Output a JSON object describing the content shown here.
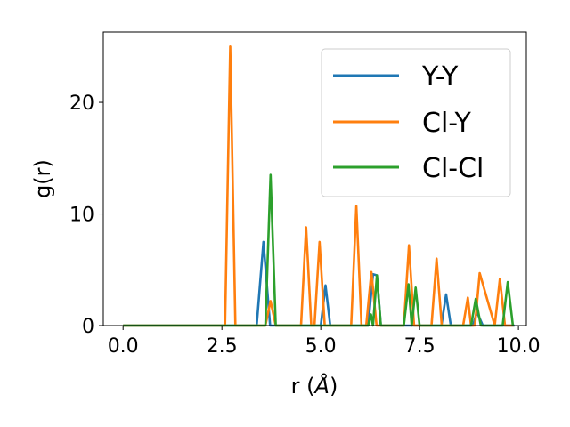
{
  "chart_data": {
    "type": "line",
    "xlabel_prefix": "r (",
    "xlabel_unit": "Å",
    "xlabel_suffix": ")",
    "ylabel": "g(r)",
    "xlim": [
      -0.5,
      10.2
    ],
    "ylim": [
      0,
      26.3
    ],
    "xticks": [
      0,
      2.5,
      5,
      7.5,
      10
    ],
    "xtick_labels": [
      "0.0",
      "2.5",
      "5.0",
      "7.5",
      "10.0"
    ],
    "yticks": [
      0,
      10,
      20
    ],
    "ytick_labels": [
      "0",
      "10",
      "20"
    ],
    "grid": false,
    "legend_position": "top-right",
    "series": [
      {
        "name": "Y-Y",
        "color": "#1f77b4",
        "x": [
          0,
          3.38,
          3.55,
          3.72,
          5.0,
          5.12,
          5.24,
          6.2,
          6.32,
          6.42,
          6.52,
          8.05,
          8.17,
          8.29,
          8.85,
          8.95,
          9.1,
          9.9
        ],
        "y": [
          0,
          0,
          7.5,
          0,
          0,
          3.6,
          0,
          0,
          4.6,
          4.5,
          0,
          0,
          2.8,
          0,
          0,
          1.2,
          0,
          0
        ]
      },
      {
        "name": "Cl-Y",
        "color": "#ff7f0e",
        "x": [
          0,
          2.58,
          2.71,
          2.84,
          3.6,
          3.73,
          3.86,
          4.5,
          4.63,
          4.76,
          4.84,
          4.97,
          5.1,
          5.77,
          5.9,
          6.03,
          6.15,
          6.28,
          6.41,
          7.1,
          7.23,
          7.36,
          7.8,
          7.93,
          8.06,
          8.6,
          8.72,
          8.8,
          8.9,
          9.02,
          9.4,
          9.53,
          9.66,
          9.75,
          9.88
        ],
        "y": [
          0,
          0,
          25.0,
          0,
          0,
          2.2,
          0,
          0,
          8.8,
          0,
          0,
          7.5,
          0,
          0,
          10.7,
          0,
          0,
          4.8,
          0,
          0,
          7.2,
          0,
          0,
          6.0,
          0,
          0,
          2.5,
          0,
          0,
          4.7,
          0,
          4.2,
          0,
          0,
          0
        ]
      },
      {
        "name": "Cl-Cl",
        "color": "#2ca02c",
        "x": [
          0,
          3.6,
          3.73,
          3.86,
          6.2,
          6.27,
          6.32,
          6.42,
          6.52,
          7.1,
          7.22,
          7.3,
          7.4,
          7.5,
          8.8,
          8.92,
          9.05,
          9.6,
          9.73,
          9.86
        ],
        "y": [
          0,
          0,
          13.5,
          0,
          0,
          1.0,
          0,
          4.5,
          0,
          0,
          3.7,
          0,
          3.4,
          0,
          0,
          2.4,
          0,
          0,
          3.9,
          0
        ]
      }
    ]
  }
}
